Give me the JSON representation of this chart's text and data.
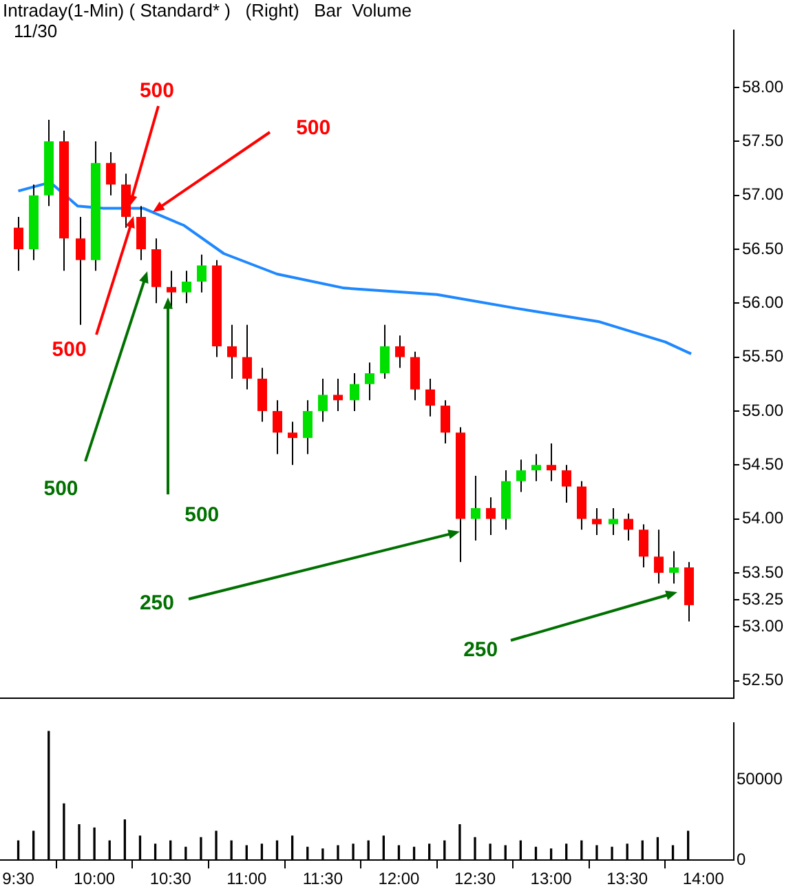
{
  "chart_data": [
    {
      "type": "candlestick",
      "title": "Intraday(1-Min) ( Standard* )   (Right)   Bar  Volume",
      "annotations": [
        "11/30",
        {
          "text": "500",
          "x": 10.23,
          "y": 56.9
        },
        {
          "text": "500",
          "x": 10.26,
          "y": 56.8
        },
        {
          "text": "500",
          "x": 10.38,
          "y": 56.85
        },
        {
          "text": "500",
          "x": 10.35,
          "y": 56.3
        },
        {
          "text": "500",
          "x": 10.48,
          "y": 56.05
        },
        {
          "text": "250",
          "x": 13.83,
          "y": 53.32
        },
        {
          "text": "250",
          "x": 12.4,
          "y": 53.88
        }
      ],
      "x": [
        9.5,
        9.6,
        9.7,
        9.8,
        9.9,
        10.0,
        10.1,
        10.2,
        10.3,
        10.4,
        10.5,
        10.6,
        10.7,
        10.8,
        10.9,
        11.0,
        11.1,
        11.2,
        11.3,
        11.4,
        11.5,
        11.6,
        11.7,
        11.8,
        11.9,
        12.0,
        12.1,
        12.2,
        12.3,
        12.4,
        12.5,
        12.6,
        12.7,
        12.8,
        12.9,
        13.0,
        13.1,
        13.2,
        13.3,
        13.4,
        13.5,
        13.6,
        13.7,
        13.8,
        13.9
      ],
      "ohlc": [
        [
          56.7,
          56.8,
          56.3,
          56.5
        ],
        [
          56.5,
          57.1,
          56.4,
          57.0
        ],
        [
          57.0,
          57.7,
          56.9,
          57.5
        ],
        [
          57.5,
          57.6,
          56.3,
          56.6
        ],
        [
          56.6,
          56.8,
          55.8,
          56.4
        ],
        [
          56.4,
          57.5,
          56.3,
          57.3
        ],
        [
          57.3,
          57.4,
          57.0,
          57.1
        ],
        [
          57.1,
          57.2,
          56.7,
          56.8
        ],
        [
          56.8,
          56.9,
          56.4,
          56.5
        ],
        [
          56.5,
          56.6,
          56.0,
          56.15
        ],
        [
          56.15,
          56.3,
          55.95,
          56.1
        ],
        [
          56.1,
          56.3,
          56.0,
          56.2
        ],
        [
          56.2,
          56.45,
          56.1,
          56.35
        ],
        [
          56.35,
          56.4,
          55.5,
          55.6
        ],
        [
          55.6,
          55.8,
          55.3,
          55.5
        ],
        [
          55.5,
          55.8,
          55.2,
          55.3
        ],
        [
          55.3,
          55.4,
          54.9,
          55.0
        ],
        [
          55.0,
          55.1,
          54.6,
          54.8
        ],
        [
          54.8,
          54.9,
          54.5,
          54.75
        ],
        [
          54.75,
          55.1,
          54.6,
          55.0
        ],
        [
          55.0,
          55.3,
          54.9,
          55.15
        ],
        [
          55.15,
          55.3,
          55.0,
          55.1
        ],
        [
          55.1,
          55.35,
          55.0,
          55.25
        ],
        [
          55.25,
          55.45,
          55.1,
          55.35
        ],
        [
          55.35,
          55.8,
          55.3,
          55.6
        ],
        [
          55.6,
          55.7,
          55.4,
          55.5
        ],
        [
          55.5,
          55.55,
          55.1,
          55.2
        ],
        [
          55.2,
          55.3,
          54.95,
          55.05
        ],
        [
          55.05,
          55.1,
          54.7,
          54.8
        ],
        [
          54.8,
          54.85,
          53.6,
          54.0
        ],
        [
          54.0,
          54.4,
          53.8,
          54.1
        ],
        [
          54.1,
          54.2,
          53.85,
          54.0
        ],
        [
          54.0,
          54.45,
          53.9,
          54.35
        ],
        [
          54.35,
          54.55,
          54.25,
          54.45
        ],
        [
          54.45,
          54.6,
          54.35,
          54.5
        ],
        [
          54.5,
          54.7,
          54.35,
          54.45
        ],
        [
          54.45,
          54.5,
          54.15,
          54.3
        ],
        [
          54.3,
          54.35,
          53.9,
          54.0
        ],
        [
          54.0,
          54.1,
          53.85,
          53.95
        ],
        [
          53.95,
          54.1,
          53.85,
          54.0
        ],
        [
          54.0,
          54.05,
          53.8,
          53.9
        ],
        [
          53.9,
          53.95,
          53.55,
          53.65
        ],
        [
          53.65,
          53.9,
          53.4,
          53.5
        ],
        [
          53.5,
          53.7,
          53.4,
          53.55
        ],
        [
          53.55,
          53.6,
          53.05,
          53.2
        ]
      ],
      "colors": [
        "#ff0000",
        "#00e000",
        "#00e000",
        "#ff0000",
        "#ff0000",
        "#00e000",
        "#ff0000",
        "#ff0000",
        "#ff0000",
        "#ff0000",
        "#ff0000",
        "#00e000",
        "#00e000",
        "#ff0000",
        "#ff0000",
        "#ff0000",
        "#ff0000",
        "#ff0000",
        "#ff0000",
        "#00e000",
        "#00e000",
        "#ff0000",
        "#00e000",
        "#00e000",
        "#00e000",
        "#ff0000",
        "#ff0000",
        "#ff0000",
        "#ff0000",
        "#ff0000",
        "#00e000",
        "#ff0000",
        "#00e000",
        "#00e000",
        "#00e000",
        "#ff0000",
        "#ff0000",
        "#ff0000",
        "#ff0000",
        "#00e000",
        "#ff0000",
        "#ff0000",
        "#ff0000",
        "#00e000",
        "#ff0000"
      ],
      "series": [
        {
          "type": "line",
          "color": "#1e88ff",
          "x": [
            9.5,
            9.71,
            9.89,
            10.06,
            10.32,
            10.59,
            10.85,
            11.2,
            11.64,
            12.25,
            12.78,
            13.31,
            13.75,
            13.92
          ],
          "values": [
            57.04,
            57.12,
            56.9,
            56.88,
            56.88,
            56.72,
            56.46,
            56.27,
            56.14,
            56.08,
            55.95,
            55.83,
            55.64,
            55.53
          ]
        }
      ],
      "xlim": [
        9.38,
        14.2
      ],
      "ylim": [
        52.34,
        58.53
      ],
      "yticks": [
        {
          "value": 52.5,
          "label": "52.50"
        },
        {
          "value": 53,
          "label": "53.00"
        },
        {
          "value": 53.25,
          "label": "53.25"
        },
        {
          "value": 53.5,
          "label": "53.50"
        },
        {
          "value": 54,
          "label": "54.00"
        },
        {
          "value": 54.5,
          "label": "54.50"
        },
        {
          "value": 55,
          "label": "55.00"
        },
        {
          "value": 55.5,
          "label": "55.50"
        },
        {
          "value": 56,
          "label": "56.00"
        },
        {
          "value": 56.5,
          "label": "56.50"
        },
        {
          "value": 57,
          "label": "57.00"
        },
        {
          "value": 57.5,
          "label": "57.50"
        },
        {
          "value": 58,
          "label": "58.00"
        }
      ],
      "tick_labels": "y",
      "grid": false,
      "legend": false
    },
    {
      "type": "bar",
      "color": "#000000",
      "x": [
        9.5,
        9.6,
        9.7,
        9.8,
        9.9,
        10.0,
        10.1,
        10.2,
        10.3,
        10.4,
        10.5,
        10.6,
        10.7,
        10.8,
        10.9,
        11.0,
        11.1,
        11.2,
        11.3,
        11.4,
        11.5,
        11.6,
        11.7,
        11.8,
        11.9,
        12.0,
        12.1,
        12.2,
        12.3,
        12.4,
        12.5,
        12.6,
        12.7,
        12.8,
        12.9,
        13.0,
        13.1,
        13.2,
        13.3,
        13.4,
        13.5,
        13.6,
        13.7,
        13.8,
        13.9
      ],
      "values": [
        12000,
        18000,
        80000,
        35000,
        22000,
        20000,
        12000,
        25000,
        15000,
        10000,
        12000,
        8000,
        14000,
        18000,
        12000,
        9000,
        10000,
        12000,
        15000,
        8000,
        7000,
        9000,
        10000,
        12000,
        15000,
        9000,
        8000,
        10000,
        12000,
        22000,
        14000,
        10000,
        9000,
        12000,
        8000,
        7000,
        10000,
        12000,
        9000,
        8000,
        10000,
        12000,
        14000,
        9000,
        18000
      ],
      "xlim": [
        9.38,
        14.2
      ],
      "ylim": [
        0,
        85000
      ],
      "yticks": [
        0,
        50000
      ],
      "xticks": [
        {
          "value": 9.5,
          "label": "9:30"
        },
        {
          "value": 10,
          "label": "10:00"
        },
        {
          "value": 10.5,
          "label": "10:30"
        },
        {
          "value": 11,
          "label": "11:00"
        },
        {
          "value": 11.5,
          "label": "11:30"
        },
        {
          "value": 12,
          "label": "12:00"
        },
        {
          "value": 12.5,
          "label": "12:30"
        },
        {
          "value": 13,
          "label": "13:00"
        },
        {
          "value": 13.5,
          "label": "13:30"
        },
        {
          "value": 14,
          "label": "14:00"
        }
      ],
      "grid": false,
      "legend": false
    }
  ]
}
